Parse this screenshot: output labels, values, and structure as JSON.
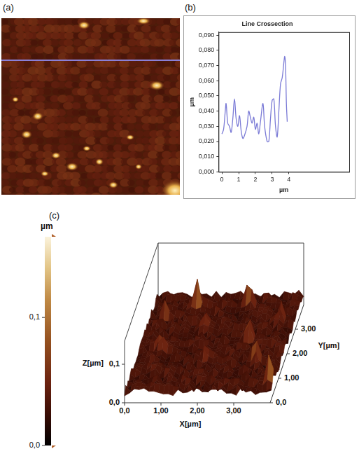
{
  "panel_labels": [
    "(a)",
    "(b)",
    "(c)"
  ],
  "chart_data": {
    "type": "line",
    "title": "Line Crossection",
    "x_label": "µm",
    "y_label": "µm",
    "x": [
      0,
      0.1,
      0.2,
      0.25,
      0.35,
      0.45,
      0.55,
      0.65,
      0.75,
      0.85,
      0.95,
      1.05,
      1.15,
      1.25,
      1.35,
      1.5,
      1.6,
      1.7,
      1.8,
      1.9,
      2.0,
      2.1,
      2.2,
      2.3,
      2.45,
      2.55,
      2.7,
      2.8,
      2.9,
      3.0,
      3.1,
      3.2,
      3.3,
      3.4,
      3.5,
      3.6,
      3.7,
      3.75,
      3.8,
      3.85,
      3.9
    ],
    "values": [
      0.025,
      0.028,
      0.04,
      0.045,
      0.032,
      0.03,
      0.026,
      0.035,
      0.048,
      0.035,
      0.03,
      0.037,
      0.027,
      0.022,
      0.024,
      0.03,
      0.04,
      0.036,
      0.032,
      0.036,
      0.028,
      0.032,
      0.025,
      0.033,
      0.045,
      0.03,
      0.02,
      0.02,
      0.035,
      0.047,
      0.048,
      0.03,
      0.023,
      0.04,
      0.058,
      0.062,
      0.072,
      0.076,
      0.07,
      0.045,
      0.033
    ],
    "color": "#7b7bd6",
    "xlim": [
      -0.2,
      7.6
    ],
    "xticks": [
      0,
      1,
      2,
      3,
      4
    ],
    "ylim": [
      0,
      0.092
    ],
    "yticks": [
      {
        "value": 0,
        "label": "0,000"
      },
      {
        "value": 0.01,
        "label": "0,010"
      },
      {
        "value": 0.02,
        "label": "0,020"
      },
      {
        "value": 0.03,
        "label": "0,030"
      },
      {
        "value": 0.04,
        "label": "0,040"
      },
      {
        "value": 0.05,
        "label": "0,050"
      },
      {
        "value": 0.06,
        "label": "0,060"
      },
      {
        "value": 0.07,
        "label": "0,070"
      },
      {
        "value": 0.08,
        "label": "0,080"
      },
      {
        "value": 0.09,
        "label": "0,090"
      }
    ],
    "grid": false
  },
  "color_bar": {
    "title": "µm",
    "range": [
      0,
      0.163
    ],
    "ticks": [
      {
        "value": 0.1,
        "label": "0,1"
      },
      {
        "value": 0,
        "label": "0,0"
      }
    ]
  },
  "surface_3d": {
    "type": "surface",
    "x_label": "X[µm]",
    "y_label": "Y[µm]",
    "z_label": "Z[µm]",
    "xlim": [
      0,
      4
    ],
    "ylim": [
      0,
      4
    ],
    "zlim": [
      0,
      0.16
    ],
    "xticks": [
      {
        "value": 0,
        "label": "0,0"
      },
      {
        "value": 1,
        "label": "1,00"
      },
      {
        "value": 2,
        "label": "2,00"
      },
      {
        "value": 3,
        "label": "3,00"
      }
    ],
    "yticks": [
      {
        "value": 0,
        "label": "0,0"
      },
      {
        "value": 1,
        "label": "1,00"
      },
      {
        "value": 2,
        "label": "2,00"
      },
      {
        "value": 3,
        "label": "3,00"
      }
    ],
    "zticks": [
      {
        "value": 0,
        "label": "0,0"
      },
      {
        "value": 0.1,
        "label": "0,1"
      }
    ]
  }
}
